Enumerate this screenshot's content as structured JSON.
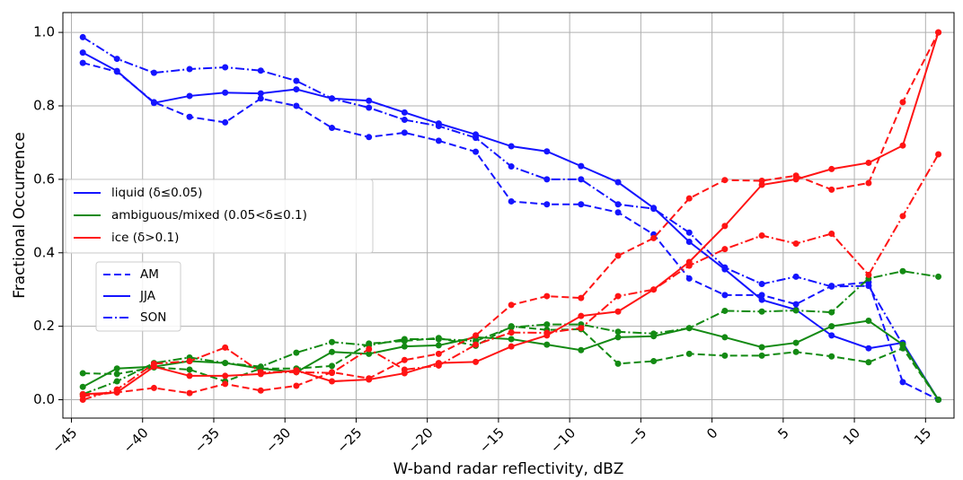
{
  "chart_data": {
    "type": "line",
    "xlabel": "W-band radar reflectivity, dBZ",
    "ylabel": "Fractional Occurrence",
    "x": [
      -44.2,
      -41.8,
      -39.2,
      -36.7,
      -34.2,
      -31.7,
      -29.2,
      -26.7,
      -24.1,
      -21.6,
      -19.2,
      -16.6,
      -14.1,
      -11.6,
      -9.2,
      -6.6,
      -4.1,
      -1.6,
      0.9,
      3.5,
      5.9,
      8.4,
      11.0,
      13.4,
      15.9
    ],
    "seasons": [
      {
        "name": "AM",
        "dash": "dashed"
      },
      {
        "name": "JJA",
        "dash": "solid"
      },
      {
        "name": "SON",
        "dash": "dashdot"
      }
    ],
    "series": [
      {
        "name": "liquid (δ≤0.05)",
        "color": "#1414ff",
        "values": [
          [
            0.917,
            0.893,
            0.81,
            0.77,
            0.755,
            0.82,
            0.8,
            0.74,
            0.715,
            0.727,
            0.705,
            0.675,
            0.54,
            0.532,
            0.532,
            0.51,
            0.45,
            0.33,
            0.285,
            0.285,
            0.26,
            0.31,
            0.32,
            0.048,
            0.0
          ],
          [
            0.945,
            0.895,
            0.808,
            0.827,
            0.836,
            0.834,
            0.845,
            0.82,
            0.814,
            0.782,
            0.752,
            0.722,
            0.69,
            0.676,
            0.636,
            0.592,
            0.522,
            0.43,
            0.355,
            0.272,
            0.245,
            0.175,
            0.14,
            0.155,
            0.0
          ],
          [
            0.987,
            0.928,
            0.89,
            0.9,
            0.905,
            0.896,
            0.868,
            0.82,
            0.795,
            0.762,
            0.745,
            0.713,
            0.635,
            0.6,
            0.6,
            0.532,
            0.52,
            0.455,
            0.36,
            0.315,
            0.335,
            0.308,
            0.31,
            0.15,
            0.0
          ]
        ]
      },
      {
        "name": "ambiguous/mixed (0.05<δ≤0.1)",
        "color": "#138a13",
        "values": [
          [
            0.072,
            0.07,
            0.088,
            0.082,
            0.05,
            0.085,
            0.085,
            0.092,
            0.153,
            0.16,
            0.168,
            0.147,
            0.2,
            0.19,
            0.192,
            0.098,
            0.105,
            0.125,
            0.12,
            0.12,
            0.13,
            0.118,
            0.102,
            0.14,
            0.0
          ],
          [
            0.035,
            0.085,
            0.09,
            0.105,
            0.1,
            0.085,
            0.075,
            0.13,
            0.125,
            0.145,
            0.148,
            0.17,
            0.165,
            0.15,
            0.135,
            0.17,
            0.173,
            0.195,
            0.17,
            0.143,
            0.155,
            0.2,
            0.215,
            0.15,
            0.0
          ],
          [
            0.015,
            0.05,
            0.1,
            0.115,
            0.1,
            0.09,
            0.128,
            0.157,
            0.148,
            0.165,
            0.165,
            0.16,
            0.197,
            0.205,
            0.205,
            0.185,
            0.18,
            0.195,
            0.242,
            0.24,
            0.243,
            0.238,
            0.33,
            0.35,
            0.335
          ]
        ]
      },
      {
        "name": "ice (δ>0.1)",
        "color": "#ff1414",
        "values": [
          [
            0.01,
            0.02,
            0.032,
            0.018,
            0.043,
            0.025,
            0.038,
            0.075,
            0.058,
            0.108,
            0.125,
            0.175,
            0.258,
            0.282,
            0.277,
            0.392,
            0.44,
            0.548,
            0.598,
            0.596,
            0.61,
            0.572,
            0.59,
            0.81,
            1.0
          ],
          [
            0.015,
            0.02,
            0.09,
            0.065,
            0.065,
            0.07,
            0.08,
            0.05,
            0.055,
            0.072,
            0.1,
            0.103,
            0.145,
            0.175,
            0.228,
            0.24,
            0.3,
            0.375,
            0.473,
            0.585,
            0.6,
            0.628,
            0.645,
            0.692,
            1.0
          ],
          [
            0.0,
            0.028,
            0.098,
            0.105,
            0.142,
            0.075,
            0.075,
            0.073,
            0.138,
            0.082,
            0.093,
            0.15,
            0.183,
            0.182,
            0.195,
            0.282,
            0.3,
            0.365,
            0.41,
            0.447,
            0.425,
            0.452,
            0.34,
            0.5,
            0.668
          ]
        ]
      }
    ],
    "xlim": [
      -45.6,
      17.0
    ],
    "ylim": [
      -0.05,
      1.054
    ],
    "xticks": [
      {
        "value": -45,
        "label": "−45"
      },
      {
        "value": -40,
        "label": "−40"
      },
      {
        "value": -35,
        "label": "−35"
      },
      {
        "value": -30,
        "label": "−30"
      },
      {
        "value": -25,
        "label": "−25"
      },
      {
        "value": -20,
        "label": "−20"
      },
      {
        "value": -15,
        "label": "−15"
      },
      {
        "value": -10,
        "label": "−10"
      },
      {
        "value": -5,
        "label": "−5"
      },
      0,
      5,
      10,
      15
    ],
    "yticks": [
      {
        "value": 0,
        "label": "0.0"
      },
      0.2,
      0.4,
      0.6,
      0.8,
      {
        "value": 1,
        "label": "1.0"
      }
    ],
    "grid": true
  }
}
